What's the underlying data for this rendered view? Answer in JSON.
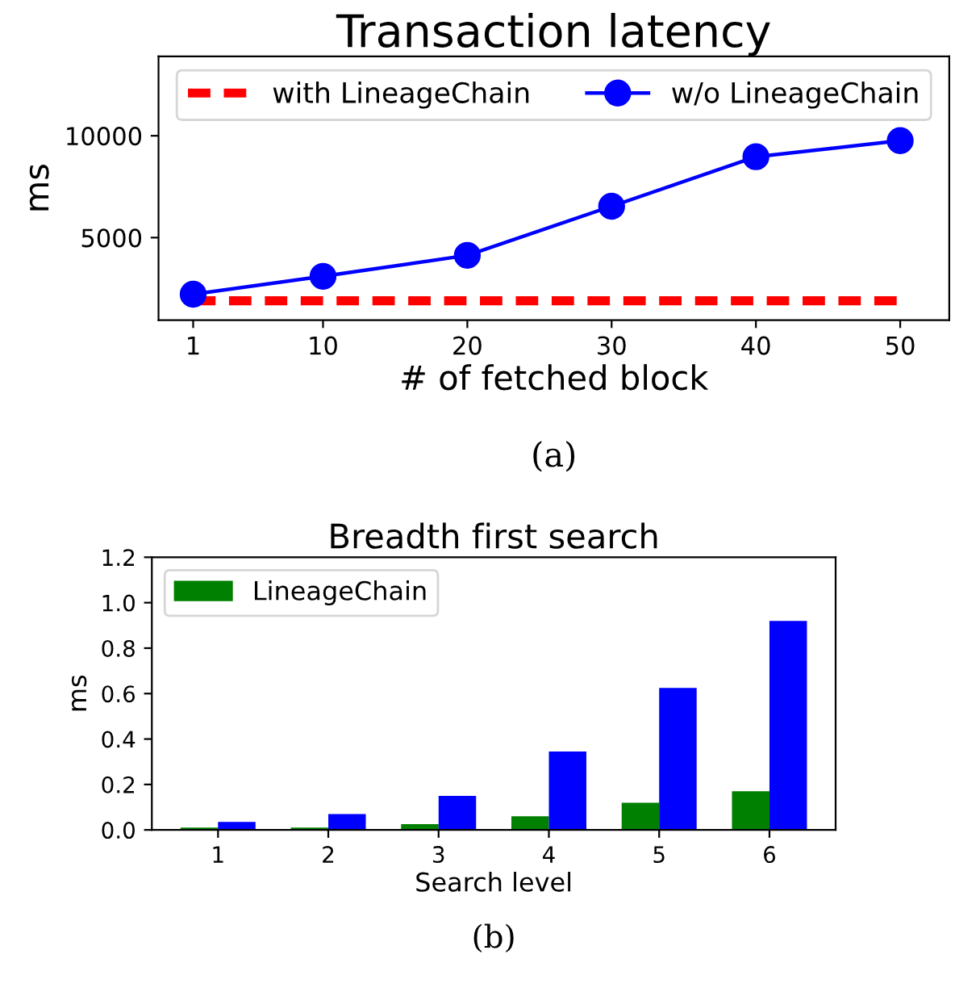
{
  "chart_data": [
    {
      "type": "line",
      "title": "Transaction latency",
      "xlabel": "# of fetched block",
      "ylabel": "ms",
      "x": [
        1,
        10,
        20,
        30,
        40,
        50
      ],
      "series": [
        {
          "name": "with LineageChain",
          "color": "#ff0000",
          "line_style": "dashed",
          "marker": "none",
          "values": [
            1900,
            1900,
            1900,
            1900,
            1900,
            1900
          ]
        },
        {
          "name": "w/o LineageChain",
          "color": "#0000ff",
          "line_style": "solid",
          "marker": "circle",
          "values": [
            2220,
            3100,
            4130,
            6540,
            8970,
            9760
          ]
        }
      ],
      "xlim": [
        -1.4,
        53.4
      ],
      "xticks": [
        1,
        10,
        20,
        30,
        40,
        50
      ],
      "ylim": [
        950,
        13900
      ],
      "yticks": [
        5000,
        10000
      ],
      "grid": false,
      "legend": "top",
      "annotations": [
        "(a)"
      ]
    },
    {
      "type": "bar",
      "title": "Breadth first search",
      "xlabel": "Search level",
      "ylabel": "ms",
      "categories": [
        "1",
        "2",
        "3",
        "4",
        "5",
        "6"
      ],
      "series": [
        {
          "name": "LineageChain",
          "color": "#008000",
          "values": [
            0.01,
            0.01,
            0.025,
            0.06,
            0.12,
            0.17
          ]
        },
        {
          "color": "#0000ff",
          "values": [
            0.035,
            0.07,
            0.15,
            0.345,
            0.625,
            0.92
          ]
        }
      ],
      "ylim": [
        0,
        1.2
      ],
      "yticks": [
        {
          "value": 0,
          "label": "0.0"
        },
        0.2,
        0.4,
        0.6,
        0.8,
        {
          "value": 1,
          "label": "1.0"
        },
        1.2
      ],
      "grid": false,
      "legend": "top left",
      "annotations": [
        "(b)"
      ]
    }
  ]
}
